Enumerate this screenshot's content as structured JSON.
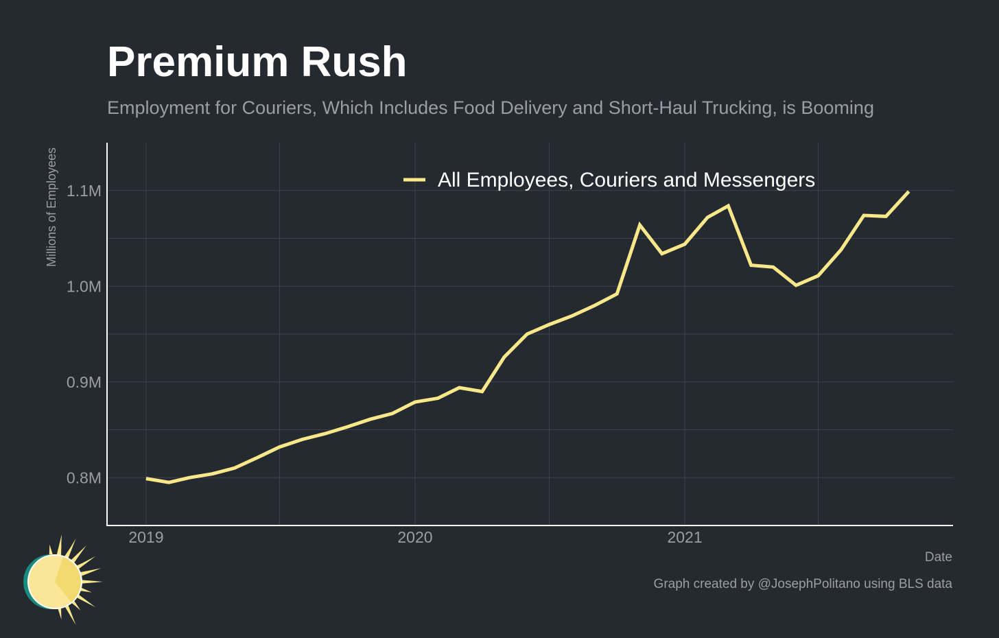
{
  "title": "Premium Rush",
  "subtitle": "Employment for Couriers, Which Includes Food Delivery and Short-Haul Trucking, is Booming",
  "caption": "Graph created by @JosephPolitano using BLS data",
  "colors": {
    "background": "#252930",
    "line": "#f8e88a",
    "grid": "#3e434b",
    "axis": "#ffffff",
    "muted_text": "#9b9ea4"
  },
  "chart_data": {
    "type": "line",
    "xlabel": "Date",
    "ylabel": "Millions of Employees",
    "ylim": [
      0.75,
      1.15
    ],
    "xlim": [
      "2018-11-09",
      "2021-12-31"
    ],
    "y_ticks": [
      0.8,
      0.9,
      1.0,
      1.1
    ],
    "y_tick_labels": [
      "0.8M",
      "0.9M",
      "1.0M",
      "1.1M"
    ],
    "x_ticks": [
      "2019-01-01",
      "2020-01-01",
      "2021-01-01"
    ],
    "x_tick_labels": [
      "2019",
      "2020",
      "2021"
    ],
    "grid": true,
    "legend_position": "top-center",
    "series": [
      {
        "name": "All Employees, Couriers and Messengers",
        "x": [
          "2019-01-01",
          "2019-02-01",
          "2019-03-01",
          "2019-04-01",
          "2019-05-01",
          "2019-06-01",
          "2019-07-01",
          "2019-08-01",
          "2019-09-01",
          "2019-10-01",
          "2019-11-01",
          "2019-12-01",
          "2020-01-01",
          "2020-02-01",
          "2020-03-01",
          "2020-04-01",
          "2020-05-01",
          "2020-06-01",
          "2020-07-01",
          "2020-08-01",
          "2020-09-01",
          "2020-10-01",
          "2020-11-01",
          "2020-12-01",
          "2021-01-01",
          "2021-02-01",
          "2021-03-01",
          "2021-04-01",
          "2021-05-01",
          "2021-06-01",
          "2021-07-01",
          "2021-08-01",
          "2021-09-01",
          "2021-10-01",
          "2021-11-01"
        ],
        "values": [
          0.799,
          0.795,
          0.8,
          0.804,
          0.81,
          0.821,
          0.832,
          0.84,
          0.846,
          0.853,
          0.861,
          0.867,
          0.879,
          0.883,
          0.894,
          0.89,
          0.926,
          0.95,
          0.96,
          0.969,
          0.98,
          0.992,
          1.064,
          1.034,
          1.044,
          1.072,
          1.084,
          1.022,
          1.02,
          1.001,
          1.011,
          1.038,
          1.074,
          1.073,
          1.099
        ]
      }
    ]
  }
}
